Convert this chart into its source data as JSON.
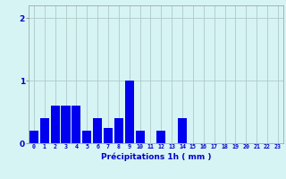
{
  "values": [
    0.2,
    0.4,
    0.6,
    0.6,
    0.6,
    0.2,
    0.4,
    0.25,
    0.4,
    1.0,
    0.2,
    0.0,
    0.2,
    0.0,
    0.4,
    0.0,
    0.0,
    0.0,
    0.0,
    0.0,
    0.0,
    0.0,
    0.0,
    0.0
  ],
  "bar_color": "#0000ee",
  "background_color": "#d6f4f4",
  "grid_color": "#b0c8c8",
  "xlabel": "Précipitations 1h ( mm )",
  "xlabel_color": "#0000cc",
  "tick_color": "#0000cc",
  "ylim": [
    0,
    2.2
  ],
  "yticks": [
    0,
    1,
    2
  ],
  "xlim": [
    -0.5,
    23.5
  ],
  "bar_width": 0.85,
  "xtick_fontsize": 4.8,
  "ytick_fontsize": 6.5,
  "xlabel_fontsize": 6.5
}
